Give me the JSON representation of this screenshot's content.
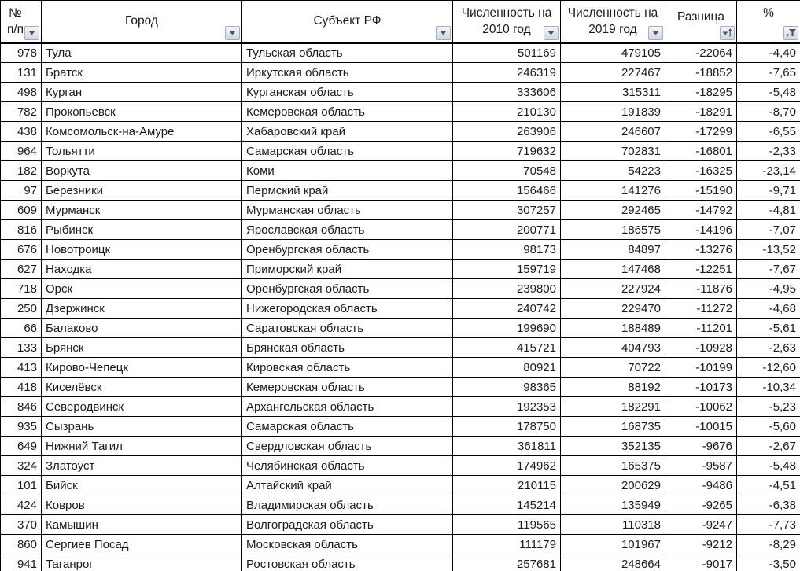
{
  "table": {
    "columns": [
      {
        "label": "№\nп/п",
        "filter_state": "dropdown"
      },
      {
        "label": "Город",
        "filter_state": "dropdown"
      },
      {
        "label": "Субъект РФ",
        "filter_state": "dropdown"
      },
      {
        "label": "Численность на\n2010 год",
        "filter_state": "dropdown"
      },
      {
        "label": "Численность на\n2019 год",
        "filter_state": "dropdown"
      },
      {
        "label": "Разница",
        "filter_state": "sorted-ascending"
      },
      {
        "label": "%",
        "filter_state": "filtered"
      }
    ],
    "rows": [
      [
        "978",
        "Тула",
        "Тульская область",
        "501169",
        "479105",
        "-22064",
        "-4,40"
      ],
      [
        "131",
        "Братск",
        "Иркутская область",
        "246319",
        "227467",
        "-18852",
        "-7,65"
      ],
      [
        "498",
        "Курган",
        "Курганская область",
        "333606",
        "315311",
        "-18295",
        "-5,48"
      ],
      [
        "782",
        "Прокопьевск",
        "Кемеровская область",
        "210130",
        "191839",
        "-18291",
        "-8,70"
      ],
      [
        "438",
        "Комсомольск-на-Амуре",
        "Хабаровский край",
        "263906",
        "246607",
        "-17299",
        "-6,55"
      ],
      [
        "964",
        "Тольятти",
        "Самарская область",
        "719632",
        "702831",
        "-16801",
        "-2,33"
      ],
      [
        "182",
        "Воркута",
        "Коми",
        "70548",
        "54223",
        "-16325",
        "-23,14"
      ],
      [
        "97",
        "Березники",
        "Пермский край",
        "156466",
        "141276",
        "-15190",
        "-9,71"
      ],
      [
        "609",
        "Мурманск",
        "Мурманская область",
        "307257",
        "292465",
        "-14792",
        "-4,81"
      ],
      [
        "816",
        "Рыбинск",
        "Ярославская область",
        "200771",
        "186575",
        "-14196",
        "-7,07"
      ],
      [
        "676",
        "Новотроицк",
        "Оренбургская область",
        "98173",
        "84897",
        "-13276",
        "-13,52"
      ],
      [
        "627",
        "Находка",
        "Приморский край",
        "159719",
        "147468",
        "-12251",
        "-7,67"
      ],
      [
        "718",
        "Орск",
        "Оренбургская область",
        "239800",
        "227924",
        "-11876",
        "-4,95"
      ],
      [
        "250",
        "Дзержинск",
        "Нижегородская область",
        "240742",
        "229470",
        "-11272",
        "-4,68"
      ],
      [
        "66",
        "Балаково",
        "Саратовская область",
        "199690",
        "188489",
        "-11201",
        "-5,61"
      ],
      [
        "133",
        "Брянск",
        "Брянская область",
        "415721",
        "404793",
        "-10928",
        "-2,63"
      ],
      [
        "413",
        "Кирово-Чепецк",
        "Кировская область",
        "80921",
        "70722",
        "-10199",
        "-12,60"
      ],
      [
        "418",
        "Киселёвск",
        "Кемеровская область",
        "98365",
        "88192",
        "-10173",
        "-10,34"
      ],
      [
        "846",
        "Северодвинск",
        "Архангельская область",
        "192353",
        "182291",
        "-10062",
        "-5,23"
      ],
      [
        "935",
        "Сызрань",
        "Самарская область",
        "178750",
        "168735",
        "-10015",
        "-5,60"
      ],
      [
        "649",
        "Нижний Тагил",
        "Свердловская область",
        "361811",
        "352135",
        "-9676",
        "-2,67"
      ],
      [
        "324",
        "Златоуст",
        "Челябинская область",
        "174962",
        "165375",
        "-9587",
        "-5,48"
      ],
      [
        "101",
        "Бийск",
        "Алтайский край",
        "210115",
        "200629",
        "-9486",
        "-4,51"
      ],
      [
        "424",
        "Ковров",
        "Владимирская область",
        "145214",
        "135949",
        "-9265",
        "-6,38"
      ],
      [
        "370",
        "Камышин",
        "Волгоградская область",
        "119565",
        "110318",
        "-9247",
        "-7,73"
      ],
      [
        "860",
        "Сергиев Посад",
        "Московская область",
        "111179",
        "101967",
        "-9212",
        "-8,29"
      ],
      [
        "941",
        "Таганрог",
        "Ростовская область",
        "257681",
        "248664",
        "-9017",
        "-3,50"
      ]
    ]
  },
  "colors": {
    "grid_border": "#000000",
    "cell_text": "#1a1a1a",
    "filter_icon": "#44546a",
    "filter_button_border": "#a3aec0",
    "filter_button_bg": "#e0e4ea"
  }
}
